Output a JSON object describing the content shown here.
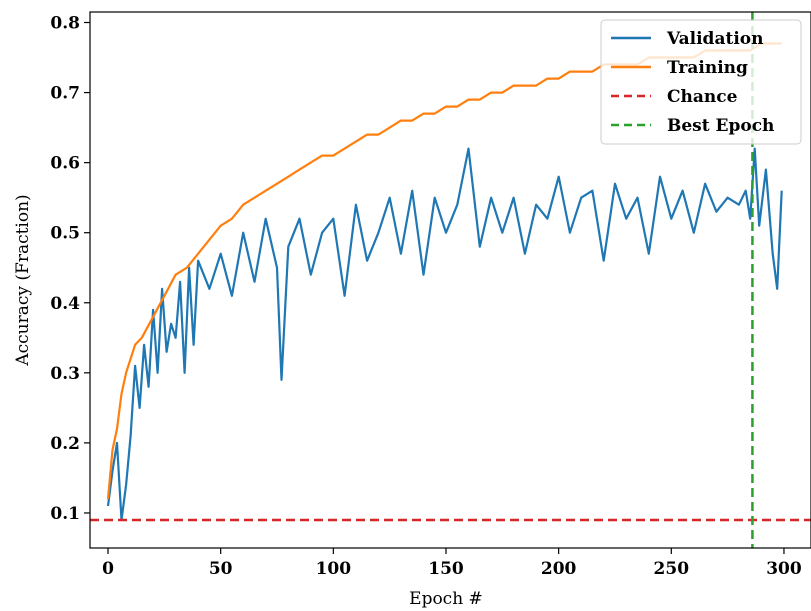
{
  "chart_data": {
    "type": "line",
    "xlabel": "Epoch #",
    "ylabel": "Accuracy (Fraction)",
    "xlim": [
      -8,
      312
    ],
    "ylim": [
      0.05,
      0.815
    ],
    "xticks": [
      0,
      50,
      100,
      150,
      200,
      250,
      300
    ],
    "yticks": [
      0.1,
      0.2,
      0.3,
      0.4,
      0.5,
      0.6,
      0.7,
      0.8
    ],
    "xtick_labels": [
      "0",
      "50",
      "100",
      "150",
      "200",
      "250",
      "300"
    ],
    "ytick_labels": [
      "0.1",
      "0.2",
      "0.3",
      "0.4",
      "0.5",
      "0.6",
      "0.7",
      "0.8"
    ],
    "grid": false,
    "legend_position": "top-right",
    "series": [
      {
        "name": "Validation",
        "color": "#1f77b4",
        "x": [
          0,
          2,
          4,
          6,
          8,
          10,
          12,
          14,
          16,
          18,
          20,
          22,
          24,
          26,
          28,
          30,
          32,
          34,
          36,
          38,
          40,
          45,
          50,
          55,
          60,
          65,
          70,
          75,
          77,
          80,
          85,
          90,
          95,
          100,
          105,
          110,
          115,
          120,
          125,
          130,
          135,
          140,
          145,
          150,
          155,
          160,
          165,
          170,
          175,
          180,
          185,
          190,
          195,
          200,
          205,
          210,
          215,
          220,
          225,
          230,
          235,
          240,
          245,
          250,
          255,
          260,
          265,
          270,
          275,
          280,
          283,
          285,
          287,
          289,
          292,
          295,
          297,
          299
        ],
        "y": [
          0.11,
          0.16,
          0.2,
          0.09,
          0.14,
          0.21,
          0.31,
          0.25,
          0.34,
          0.28,
          0.39,
          0.3,
          0.42,
          0.33,
          0.37,
          0.35,
          0.43,
          0.3,
          0.45,
          0.34,
          0.46,
          0.42,
          0.47,
          0.41,
          0.5,
          0.43,
          0.52,
          0.45,
          0.29,
          0.48,
          0.52,
          0.44,
          0.5,
          0.52,
          0.41,
          0.54,
          0.46,
          0.5,
          0.55,
          0.47,
          0.56,
          0.44,
          0.55,
          0.5,
          0.54,
          0.62,
          0.48,
          0.55,
          0.5,
          0.55,
          0.47,
          0.54,
          0.52,
          0.58,
          0.5,
          0.55,
          0.56,
          0.46,
          0.57,
          0.52,
          0.55,
          0.47,
          0.58,
          0.52,
          0.56,
          0.5,
          0.57,
          0.53,
          0.55,
          0.54,
          0.56,
          0.52,
          0.62,
          0.51,
          0.59,
          0.47,
          0.42,
          0.56
        ]
      },
      {
        "name": "Training",
        "color": "#ff7f0e",
        "x": [
          0,
          2,
          4,
          6,
          8,
          10,
          12,
          15,
          20,
          25,
          30,
          35,
          40,
          45,
          50,
          55,
          60,
          65,
          70,
          75,
          80,
          85,
          90,
          95,
          100,
          105,
          110,
          115,
          120,
          125,
          130,
          135,
          140,
          145,
          150,
          155,
          160,
          165,
          170,
          175,
          180,
          185,
          190,
          195,
          200,
          205,
          210,
          215,
          220,
          225,
          230,
          235,
          240,
          245,
          250,
          255,
          260,
          265,
          270,
          275,
          280,
          285,
          290,
          295,
          299
        ],
        "y": [
          0.12,
          0.19,
          0.22,
          0.27,
          0.3,
          0.32,
          0.34,
          0.35,
          0.38,
          0.41,
          0.44,
          0.45,
          0.47,
          0.49,
          0.51,
          0.52,
          0.54,
          0.55,
          0.56,
          0.57,
          0.58,
          0.59,
          0.6,
          0.61,
          0.61,
          0.62,
          0.63,
          0.64,
          0.64,
          0.65,
          0.66,
          0.66,
          0.67,
          0.67,
          0.68,
          0.68,
          0.69,
          0.69,
          0.7,
          0.7,
          0.71,
          0.71,
          0.71,
          0.72,
          0.72,
          0.73,
          0.73,
          0.73,
          0.74,
          0.74,
          0.74,
          0.74,
          0.75,
          0.75,
          0.75,
          0.75,
          0.75,
          0.76,
          0.76,
          0.76,
          0.76,
          0.76,
          0.77,
          0.77,
          0.77
        ]
      },
      {
        "name": "Chance",
        "color": "#d62728",
        "dashed": true,
        "orientation": "horizontal",
        "y": 0.09
      },
      {
        "name": "Best Epoch",
        "color": "#2ca02c",
        "dashed": true,
        "orientation": "vertical",
        "x": 286
      }
    ]
  }
}
